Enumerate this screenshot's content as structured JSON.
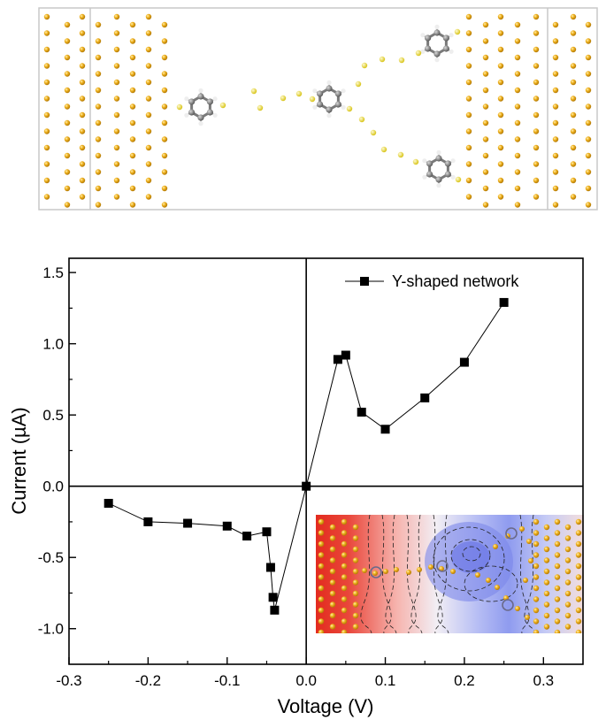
{
  "colors": {
    "gold_atom": "#f0b321",
    "sulfur_atom": "#f2e64a",
    "carbon_atom": "#8a8a8a",
    "hydrogen_atom": "#e8e8e8",
    "marker": "#000000",
    "inset_negative": "#e32b1f",
    "inset_positive": "#8f9bef"
  },
  "chart_data": {
    "type": "line",
    "xlabel": "Voltage (V)",
    "ylabel": "Current (µA)",
    "xlim": [
      -0.3,
      0.35
    ],
    "ylim": [
      -1.25,
      1.6
    ],
    "xticks": [
      -0.3,
      -0.2,
      -0.1,
      0.0,
      0.1,
      0.2,
      0.3
    ],
    "xtick_labels": [
      "-0.3",
      "-0.2",
      "-0.1",
      "0.0",
      "0.1",
      "0.2",
      "0.3"
    ],
    "yticks": [
      -1.0,
      -0.5,
      0.0,
      0.5,
      1.0,
      1.5
    ],
    "ytick_labels": [
      "-1.0",
      "-0.5",
      "0.0",
      "0.5",
      "1.0",
      "1.5"
    ],
    "grid": false,
    "legend_position": "top-right",
    "marker": "square",
    "series": [
      {
        "name": "Y-shaped network",
        "x": [
          -0.25,
          -0.2,
          -0.15,
          -0.1,
          -0.075,
          -0.05,
          -0.045,
          -0.042,
          -0.04,
          0.0,
          0.04,
          0.05,
          0.07,
          0.1,
          0.15,
          0.2,
          0.25
        ],
        "y": [
          -0.12,
          -0.25,
          -0.26,
          -0.28,
          -0.35,
          -0.32,
          -0.57,
          -0.78,
          -0.87,
          0.0,
          0.89,
          0.92,
          0.52,
          0.4,
          0.62,
          0.87,
          1.29
        ]
      }
    ]
  }
}
